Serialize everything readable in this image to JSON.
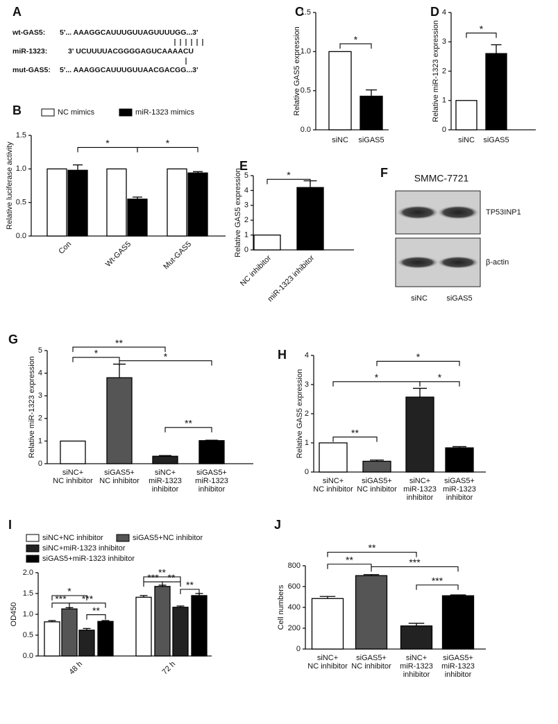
{
  "sequences": {
    "label": "A",
    "rows": [
      {
        "name": "wt-GAS5:",
        "seq": "5'... AAAGGCAUUUGUUAGUUUUGG...3'"
      },
      {
        "name": "miR-1323:",
        "seq": "3'  UCUUUUACGGGGAGUCAAAACU"
      },
      {
        "name": "mut-GAS5:",
        "seq": "5'... AAAGGCAUUUGUUAACGACGG...3'"
      }
    ]
  },
  "blot": {
    "label": "F",
    "title": "SMMC-7721",
    "bands": [
      "TP53INP1",
      "β-actin"
    ],
    "lanes": [
      "siNC",
      "siGAS5"
    ]
  },
  "chart_data": [
    {
      "type": "bar",
      "label": "B",
      "ylabel": "Relative luciferase activity",
      "categories": [
        "Con",
        "Wt-GAS5",
        "Mut-GAS5"
      ],
      "series": [
        {
          "name": "NC mimics",
          "color": "#ffffff",
          "values": [
            1,
            1,
            1
          ],
          "errors": [
            0,
            0,
            0
          ]
        },
        {
          "name": "miR-1323 mimics",
          "color": "#000000",
          "values": [
            0.98,
            0.55,
            0.94
          ],
          "errors": [
            0.08,
            0.03,
            0.02
          ]
        }
      ],
      "ylim": [
        0,
        1.5
      ],
      "yticks": [
        {
          "value": 0,
          "label": "0.0"
        },
        0.5,
        {
          "value": 1,
          "label": "1.0"
        },
        1.5
      ],
      "annotations": [
        "*",
        "*"
      ]
    },
    {
      "type": "bar",
      "label": "C",
      "ylabel": "Relative GAS5 expression",
      "categories": [
        "siNC",
        "siGAS5"
      ],
      "values": [
        1,
        0.43
      ],
      "errors": [
        0,
        0.08
      ],
      "colors": [
        "#ffffff",
        "#000000"
      ],
      "ylim": [
        0,
        1.5
      ],
      "yticks": [
        {
          "value": 0,
          "label": "0.0"
        },
        0.5,
        {
          "value": 1,
          "label": "1.0"
        },
        1.5
      ],
      "annotations": [
        "*"
      ]
    },
    {
      "type": "bar",
      "label": "D",
      "ylabel": "Relative miR-1323 expression",
      "categories": [
        "siNC",
        "siGAS5"
      ],
      "values": [
        1,
        2.6
      ],
      "errors": [
        0,
        0.3
      ],
      "colors": [
        "#ffffff",
        "#000000"
      ],
      "ylim": [
        0,
        4
      ],
      "yticks": [
        0,
        1,
        2,
        3,
        4
      ],
      "annotations": [
        "*"
      ]
    },
    {
      "type": "bar",
      "label": "E",
      "ylabel": "Relative GAS5 expression",
      "categories": [
        "NC inhibitor",
        "miR-1323 inhibitor"
      ],
      "values": [
        1,
        4.2
      ],
      "errors": [
        0,
        0.45
      ],
      "colors": [
        "#ffffff",
        "#000000"
      ],
      "ylim": [
        0,
        5
      ],
      "yticks": [
        0,
        1,
        2,
        3,
        4,
        5
      ],
      "annotations": [
        "*"
      ]
    },
    {
      "type": "bar",
      "label": "G",
      "ylabel": "Relative miR-1323 expression",
      "categories": [
        [
          "siNC+",
          "NC inhibitor"
        ],
        [
          "siGAS5+",
          "NC inhibitor"
        ],
        [
          "siNC+",
          "miR-1323",
          "inhibitor"
        ],
        [
          "siGAS5+",
          "miR-1323",
          "inhibitor"
        ]
      ],
      "values": [
        1,
        3.8,
        0.33,
        1.02
      ],
      "errors": [
        0,
        0.6,
        0.03,
        0.02
      ],
      "colors": [
        "#ffffff",
        "#555555",
        "#222222",
        "#000000"
      ],
      "ylim": [
        0,
        5
      ],
      "yticks": [
        0,
        1,
        2,
        3,
        4,
        5
      ],
      "annotations": [
        "**",
        "*",
        "*",
        "**"
      ]
    },
    {
      "type": "bar",
      "label": "H",
      "ylabel": "Relative GAS5 expression",
      "categories": [
        [
          "siNC+",
          "NC inhibitor"
        ],
        [
          "siGAS5+",
          "NC inhibitor"
        ],
        [
          "siNC+",
          "miR-1323",
          "inhibitor"
        ],
        [
          "siGAS5+",
          "miR-1323",
          "inhibitor"
        ]
      ],
      "values": [
        1,
        0.37,
        2.57,
        0.83
      ],
      "errors": [
        0,
        0.04,
        0.3,
        0.04
      ],
      "colors": [
        "#ffffff",
        "#555555",
        "#222222",
        "#000000"
      ],
      "ylim": [
        0,
        4
      ],
      "yticks": [
        0,
        1,
        2,
        3,
        4
      ],
      "annotations": [
        "**",
        "*",
        "*",
        "*"
      ]
    },
    {
      "type": "bar",
      "label": "I",
      "ylabel": "OD450",
      "categories": [
        "48 h",
        "72 h"
      ],
      "series": [
        {
          "name": "siNC+NC inhibitor",
          "color": "#ffffff",
          "values": [
            0.82,
            1.41
          ],
          "errors": [
            0.03,
            0.04
          ]
        },
        {
          "name": "siGAS5+NC inhibitor",
          "color": "#555555",
          "values": [
            1.13,
            1.67
          ],
          "errors": [
            0.03,
            0.03
          ]
        },
        {
          "name": "siNC+miR-1323 inhibitor",
          "color": "#222222",
          "values": [
            0.62,
            1.17
          ],
          "errors": [
            0.04,
            0.03
          ]
        },
        {
          "name": "siGAS5+miR-1323 inhibitor",
          "color": "#000000",
          "values": [
            0.83,
            1.45
          ],
          "errors": [
            0.02,
            0.05
          ]
        }
      ],
      "ylim": [
        0,
        2
      ],
      "yticks": [
        {
          "value": 0,
          "label": "0.0"
        },
        0.5,
        {
          "value": 1,
          "label": "1.0"
        },
        1.5,
        {
          "value": 2,
          "label": "2.0"
        }
      ],
      "annotations": [
        "*",
        "***",
        "***",
        "**",
        "**",
        "***",
        "**",
        "**"
      ]
    },
    {
      "type": "bar",
      "label": "J",
      "ylabel": "Cell numbers",
      "categories": [
        [
          "siNC+",
          "NC inhibitor"
        ],
        [
          "siGAS5+",
          "NC inhibitor"
        ],
        [
          "siNC+",
          "miR-1323",
          "inhibitor"
        ],
        [
          "siGAS5+",
          "miR-1323",
          "inhibitor"
        ]
      ],
      "values": [
        485,
        705,
        222,
        512
      ],
      "errors": [
        20,
        10,
        25,
        8
      ],
      "colors": [
        "#ffffff",
        "#555555",
        "#222222",
        "#000000"
      ],
      "ylim": [
        0,
        800
      ],
      "yticks": [
        0,
        200,
        400,
        600,
        800
      ],
      "annotations": [
        "**",
        "**",
        "***",
        "***"
      ]
    }
  ]
}
